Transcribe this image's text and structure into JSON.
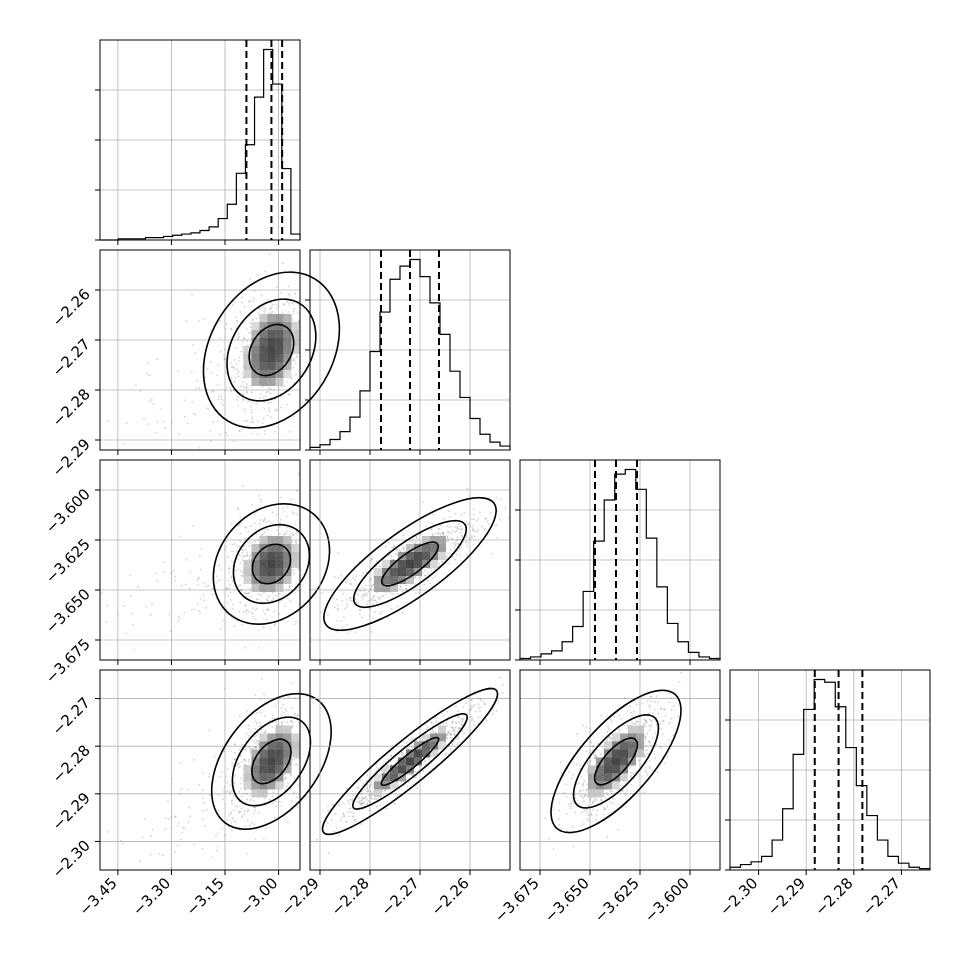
{
  "chart_data": {
    "type": "corner",
    "parameters": [
      {
        "id": "p1",
        "median": -3.02,
        "q16": -3.09,
        "q84": -2.99,
        "range": [
          -3.5,
          -2.94
        ],
        "ticks": [
          -3.45,
          -3.3,
          -3.15,
          -3.0
        ],
        "tick_labels": [
          "−3.45",
          "−3.30",
          "−3.15",
          "−3.00"
        ],
        "hist": [
          0,
          0,
          1,
          1,
          1,
          2,
          2,
          3,
          4,
          5,
          6,
          8,
          11,
          18,
          30,
          56,
          80,
          120,
          160,
          131,
          60,
          5
        ]
      },
      {
        "id": "p2",
        "median": -2.272,
        "q16": -2.2778,
        "q84": -2.2662,
        "range": [
          -2.292,
          -2.252
        ],
        "ticks": [
          -2.29,
          -2.28,
          -2.27,
          -2.26
        ],
        "tick_labels": [
          "−2.29",
          "−2.28",
          "−2.27",
          "−2.26"
        ],
        "hist": [
          2,
          4,
          8,
          14,
          25,
          45,
          75,
          105,
          130,
          140,
          145,
          132,
          112,
          88,
          60,
          40,
          24,
          12,
          6,
          3
        ]
      },
      {
        "id": "p3",
        "median": -3.637,
        "q16": -3.6475,
        "q84": -3.6265,
        "range": [
          -3.685,
          -3.585
        ],
        "ticks": [
          -3.675,
          -3.65,
          -3.625,
          -3.6
        ],
        "tick_labels": [
          "−3.675",
          "−3.650",
          "−3.625",
          "−3.600"
        ],
        "hist": [
          1,
          2,
          4,
          6,
          12,
          22,
          45,
          78,
          105,
          122,
          125,
          112,
          80,
          48,
          24,
          12,
          5,
          2,
          1
        ]
      },
      {
        "id": "p4",
        "median": -2.2832,
        "q16": -2.2882,
        "q84": -2.2782,
        "range": [
          -2.306,
          -2.264
        ],
        "ticks": [
          -2.3,
          -2.29,
          -2.28,
          -2.27
        ],
        "tick_labels": [
          "−2.30",
          "−2.29",
          "−2.28",
          "−2.27"
        ],
        "hist": [
          2,
          4,
          6,
          10,
          22,
          45,
          85,
          118,
          140,
          138,
          120,
          90,
          62,
          40,
          22,
          10,
          5,
          2,
          1
        ]
      }
    ],
    "correlations": [
      [
        1.0,
        0.3,
        0.22,
        0.45
      ],
      [
        0.3,
        1.0,
        0.82,
        0.93
      ],
      [
        0.22,
        0.82,
        1.0,
        0.72
      ],
      [
        0.45,
        0.93,
        0.72,
        1.0
      ]
    ],
    "p1_skew": "left-tailed",
    "contour_levels": [
      0.39,
      0.86,
      0.99
    ],
    "quantiles": [
      0.16,
      0.5,
      0.84
    ],
    "grid": true,
    "colors": {
      "points": "#808080",
      "lines": "#000000"
    }
  }
}
